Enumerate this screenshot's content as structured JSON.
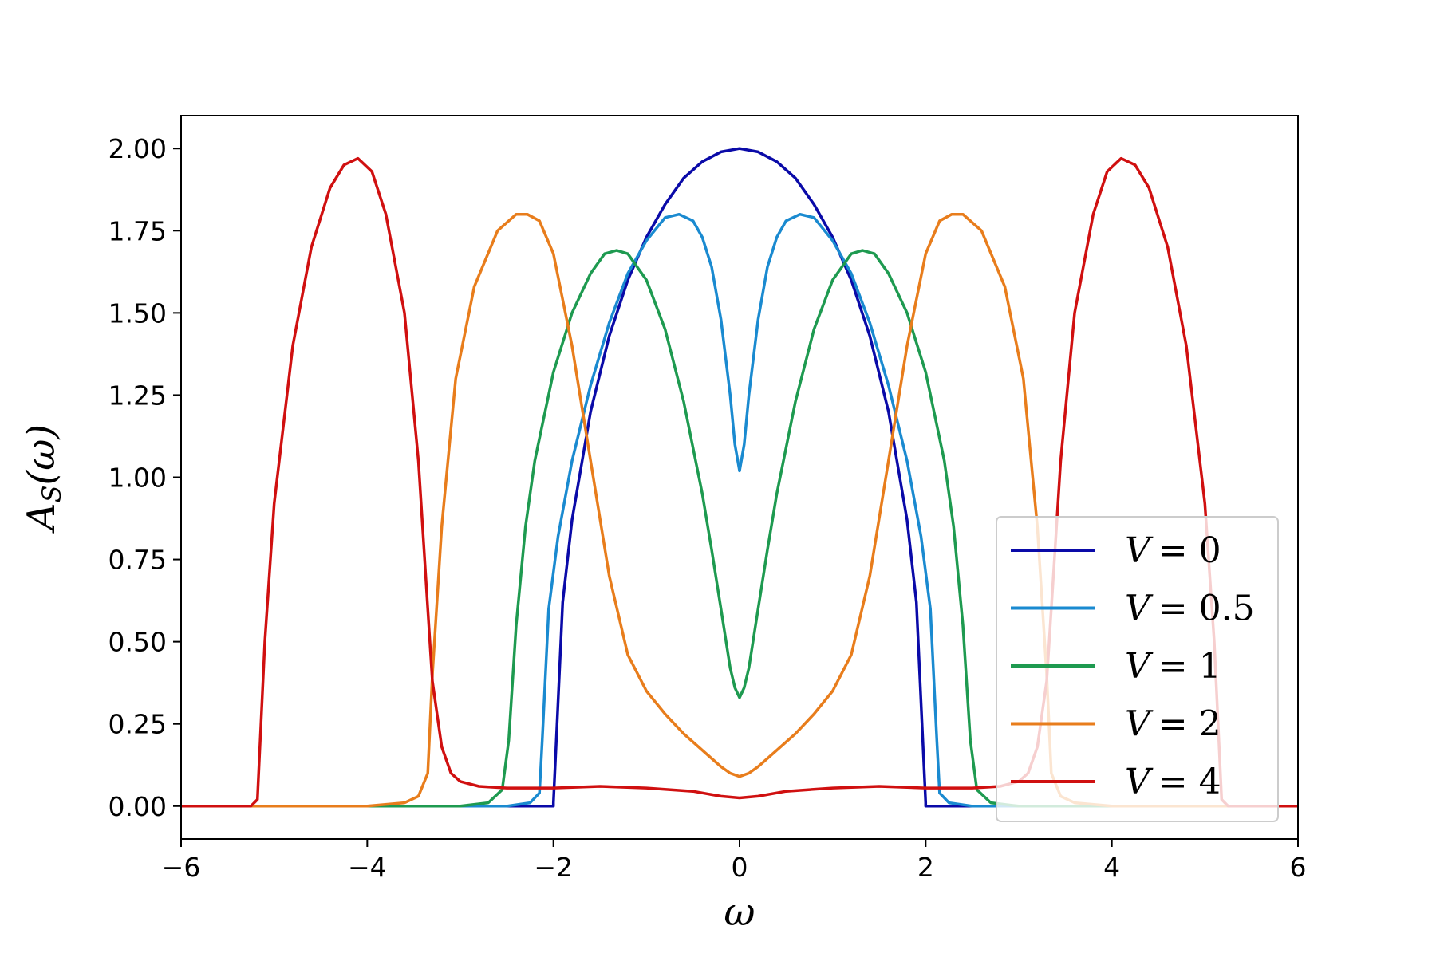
{
  "chart_data": {
    "type": "line",
    "xlabel": "ω",
    "ylabel": "A_S(ω)",
    "ylabel_main": "A",
    "ylabel_sub": "S",
    "ylabel_rest": "(ω)",
    "xlim": [
      -6,
      6
    ],
    "ylim": [
      -0.1,
      2.1
    ],
    "xticks": [
      -6,
      -4,
      -2,
      0,
      2,
      4,
      6
    ],
    "xtick_labels": [
      "−6",
      "−4",
      "−2",
      "0",
      "2",
      "4",
      "6"
    ],
    "yticks": [
      0,
      0.25,
      0.5,
      0.75,
      1.0,
      1.25,
      1.5,
      1.75,
      2.0
    ],
    "ytick_labels": [
      "0.00",
      "0.25",
      "0.50",
      "0.75",
      "1.00",
      "1.25",
      "1.50",
      "1.75",
      "2.00"
    ],
    "grid": false,
    "legend_position": "lower-right",
    "series": [
      {
        "name": "V = 0",
        "legend_var": "V",
        "legend_value": "= 0",
        "color": "#0a0aa8",
        "x": [
          -6.0,
          -2.0,
          -2.0,
          -1.9,
          -1.8,
          -1.6,
          -1.4,
          -1.2,
          -1.0,
          -0.8,
          -0.6,
          -0.4,
          -0.2,
          0.0,
          0.2,
          0.4,
          0.6,
          0.8,
          1.0,
          1.2,
          1.4,
          1.6,
          1.8,
          1.9,
          2.0,
          2.0,
          6.0
        ],
        "y": [
          0.0,
          0.0,
          0.01,
          0.62,
          0.87,
          1.2,
          1.43,
          1.6,
          1.73,
          1.83,
          1.91,
          1.96,
          1.99,
          2.0,
          1.99,
          1.96,
          1.91,
          1.83,
          1.73,
          1.6,
          1.43,
          1.2,
          0.87,
          0.62,
          0.01,
          0.0,
          0.0
        ]
      },
      {
        "name": "V = 0.5",
        "legend_var": "V",
        "legend_value": "= 0.5",
        "color": "#1a8ad0",
        "x": [
          -6.0,
          -2.5,
          -2.25,
          -2.15,
          -2.12,
          -2.05,
          -1.95,
          -1.8,
          -1.6,
          -1.4,
          -1.2,
          -1.0,
          -0.8,
          -0.65,
          -0.5,
          -0.4,
          -0.3,
          -0.2,
          -0.1,
          -0.05,
          0.0,
          0.05,
          0.1,
          0.2,
          0.3,
          0.4,
          0.5,
          0.65,
          0.8,
          1.0,
          1.2,
          1.4,
          1.6,
          1.8,
          1.95,
          2.05,
          2.12,
          2.15,
          2.25,
          2.5,
          6.0
        ],
        "y": [
          0.0,
          0.0,
          0.01,
          0.04,
          0.2,
          0.6,
          0.82,
          1.05,
          1.28,
          1.47,
          1.62,
          1.72,
          1.79,
          1.8,
          1.78,
          1.73,
          1.64,
          1.48,
          1.25,
          1.1,
          1.02,
          1.1,
          1.25,
          1.48,
          1.64,
          1.73,
          1.78,
          1.8,
          1.79,
          1.72,
          1.62,
          1.47,
          1.28,
          1.05,
          0.82,
          0.6,
          0.2,
          0.04,
          0.01,
          0.0,
          0.0
        ]
      },
      {
        "name": "V = 1",
        "legend_var": "V",
        "legend_value": "= 1",
        "color": "#1e9a50",
        "x": [
          -6.0,
          -3.0,
          -2.7,
          -2.55,
          -2.48,
          -2.4,
          -2.3,
          -2.2,
          -2.0,
          -1.8,
          -1.6,
          -1.45,
          -1.32,
          -1.2,
          -1.0,
          -0.8,
          -0.6,
          -0.4,
          -0.3,
          -0.2,
          -0.1,
          -0.05,
          0.0,
          0.05,
          0.1,
          0.2,
          0.3,
          0.4,
          0.6,
          0.8,
          1.0,
          1.2,
          1.32,
          1.45,
          1.6,
          1.8,
          2.0,
          2.2,
          2.3,
          2.4,
          2.48,
          2.55,
          2.7,
          3.0,
          6.0
        ],
        "y": [
          0.0,
          0.0,
          0.01,
          0.05,
          0.2,
          0.55,
          0.85,
          1.05,
          1.32,
          1.5,
          1.62,
          1.68,
          1.69,
          1.68,
          1.6,
          1.45,
          1.23,
          0.95,
          0.78,
          0.6,
          0.42,
          0.36,
          0.33,
          0.36,
          0.42,
          0.6,
          0.78,
          0.95,
          1.23,
          1.45,
          1.6,
          1.68,
          1.69,
          1.68,
          1.62,
          1.5,
          1.32,
          1.05,
          0.85,
          0.55,
          0.2,
          0.05,
          0.01,
          0.0,
          0.0
        ]
      },
      {
        "name": "V = 2",
        "legend_var": "V",
        "legend_value": "= 2",
        "color": "#e87d1c",
        "x": [
          -6.0,
          -4.0,
          -3.6,
          -3.45,
          -3.35,
          -3.3,
          -3.2,
          -3.05,
          -2.85,
          -2.6,
          -2.4,
          -2.28,
          -2.15,
          -2.0,
          -1.8,
          -1.6,
          -1.4,
          -1.2,
          -1.0,
          -0.8,
          -0.6,
          -0.4,
          -0.2,
          -0.1,
          0.0,
          0.1,
          0.2,
          0.4,
          0.6,
          0.8,
          1.0,
          1.2,
          1.4,
          1.6,
          1.8,
          2.0,
          2.15,
          2.28,
          2.4,
          2.6,
          2.85,
          3.05,
          3.2,
          3.3,
          3.35,
          3.45,
          3.6,
          4.0,
          6.0
        ],
        "y": [
          0.0,
          0.0,
          0.01,
          0.03,
          0.1,
          0.4,
          0.85,
          1.3,
          1.58,
          1.75,
          1.8,
          1.8,
          1.78,
          1.68,
          1.4,
          1.05,
          0.7,
          0.46,
          0.35,
          0.28,
          0.22,
          0.17,
          0.12,
          0.1,
          0.09,
          0.1,
          0.12,
          0.17,
          0.22,
          0.28,
          0.35,
          0.46,
          0.7,
          1.05,
          1.4,
          1.68,
          1.78,
          1.8,
          1.8,
          1.75,
          1.58,
          1.3,
          0.85,
          0.4,
          0.1,
          0.03,
          0.01,
          0.0,
          0.0
        ]
      },
      {
        "name": "V = 4",
        "legend_var": "V",
        "legend_value": "= 4",
        "color": "#d01010",
        "x": [
          -6.0,
          -5.25,
          -5.18,
          -5.1,
          -5.0,
          -4.8,
          -4.6,
          -4.4,
          -4.25,
          -4.1,
          -3.95,
          -3.8,
          -3.6,
          -3.45,
          -3.35,
          -3.3,
          -3.2,
          -3.1,
          -3.0,
          -2.8,
          -2.5,
          -2.0,
          -1.5,
          -1.0,
          -0.5,
          -0.2,
          0.0,
          0.2,
          0.5,
          1.0,
          1.5,
          2.0,
          2.5,
          2.8,
          3.0,
          3.1,
          3.2,
          3.3,
          3.35,
          3.45,
          3.6,
          3.8,
          3.95,
          4.1,
          4.25,
          4.4,
          4.6,
          4.8,
          5.0,
          5.1,
          5.18,
          5.25,
          6.0
        ],
        "y": [
          0.0,
          0.0,
          0.02,
          0.5,
          0.92,
          1.4,
          1.7,
          1.88,
          1.95,
          1.97,
          1.93,
          1.8,
          1.5,
          1.05,
          0.6,
          0.38,
          0.18,
          0.1,
          0.075,
          0.06,
          0.055,
          0.055,
          0.06,
          0.055,
          0.045,
          0.03,
          0.025,
          0.03,
          0.045,
          0.055,
          0.06,
          0.055,
          0.055,
          0.06,
          0.075,
          0.1,
          0.18,
          0.38,
          0.6,
          1.05,
          1.5,
          1.8,
          1.93,
          1.97,
          1.95,
          1.88,
          1.7,
          1.4,
          0.92,
          0.5,
          0.02,
          0.0,
          0.0
        ]
      }
    ]
  }
}
